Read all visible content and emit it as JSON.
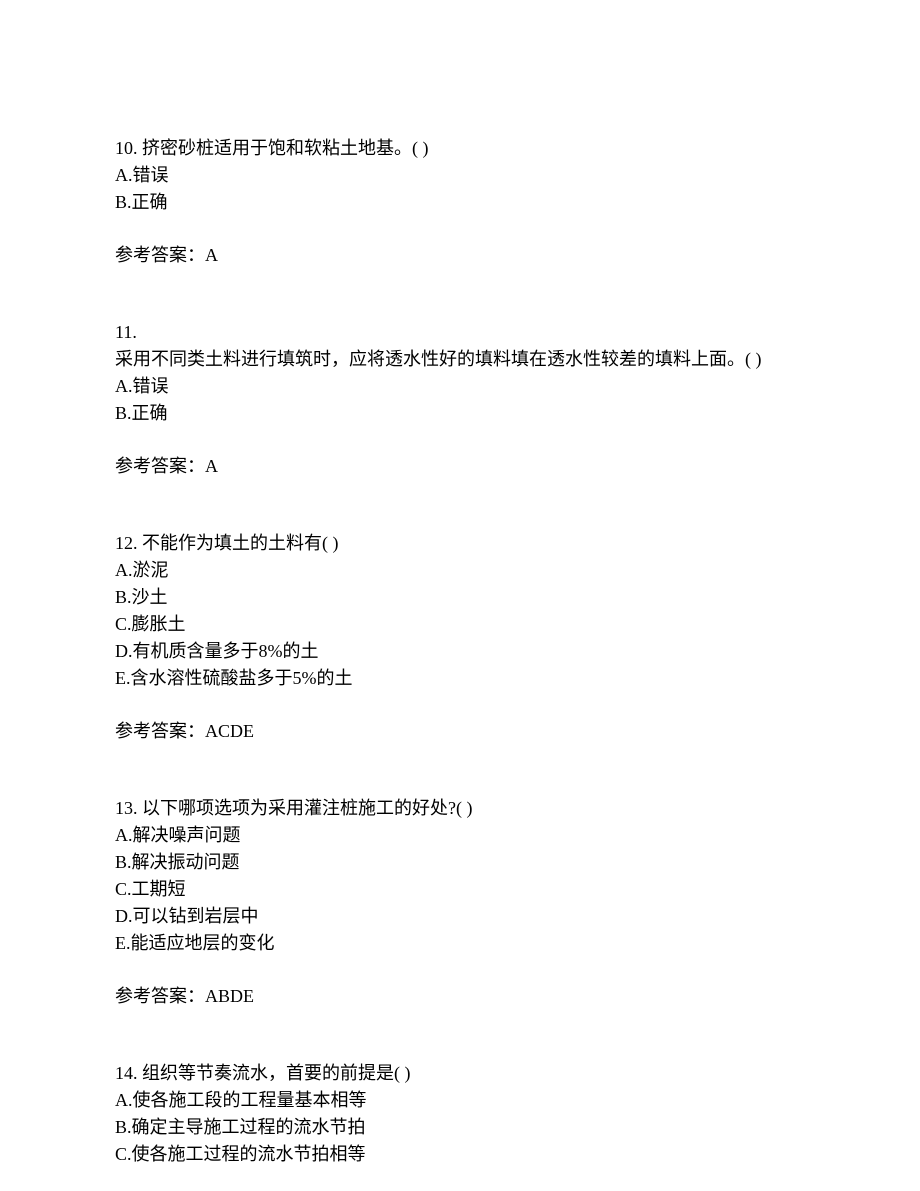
{
  "questions": [
    {
      "number": "10.",
      "text": " 挤密砂桩适用于饱和软粘土地基。(  )",
      "options": [
        "A.错误",
        "B.正确"
      ],
      "answer_label": "参考答案：",
      "answer_value": "A"
    },
    {
      "number": "11.",
      "text": "采用不同类土料进行填筑时，应将透水性好的填料填在透水性较差的填料上面。( )",
      "options": [
        "A.错误",
        "B.正确"
      ],
      "answer_label": "参考答案：",
      "answer_value": "A"
    },
    {
      "number": "12.",
      "text": " 不能作为填土的土料有(  )",
      "options": [
        "A.淤泥",
        "B.沙土",
        "C.膨胀土",
        "D.有机质含量多于8%的土",
        "E.含水溶性硫酸盐多于5%的土"
      ],
      "answer_label": "参考答案：",
      "answer_value": "ACDE"
    },
    {
      "number": "13.",
      "text": " 以下哪项选项为采用灌注桩施工的好处?(  )",
      "options": [
        "A.解决噪声问题",
        "B.解决振动问题",
        "C.工期短",
        "D.可以钻到岩层中",
        "E.能适应地层的变化"
      ],
      "answer_label": "参考答案：",
      "answer_value": "ABDE"
    },
    {
      "number": "14.",
      "text": " 组织等节奏流水，首要的前提是(  )",
      "options": [
        "A.使各施工段的工程量基本相等",
        "B.确定主导施工过程的流水节拍",
        "C.使各施工过程的流水节拍相等"
      ],
      "answer_label": "",
      "answer_value": ""
    }
  ]
}
